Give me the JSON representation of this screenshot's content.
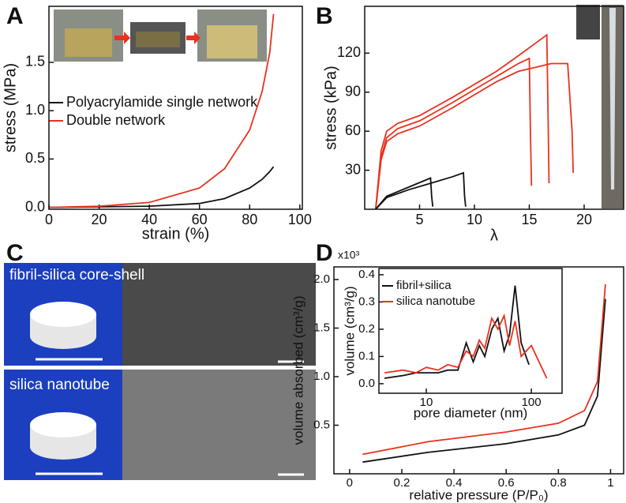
{
  "panel_labels": [
    "A",
    "B",
    "C",
    "D"
  ],
  "images": [
    {
      "label": "fibril-silica core-shell"
    },
    {
      "label": "silica nanotube"
    }
  ],
  "chart_data": [
    {
      "type": "line",
      "xlabel": "strain (%)",
      "ylabel": "stress (MPa)",
      "xlim": [
        0,
        101
      ],
      "ylim": [
        -0.02,
        2.08
      ],
      "xticks": [
        0,
        20,
        40,
        60,
        80,
        100
      ],
      "yticks": [
        {
          "value": 0,
          "label": "0.0"
        },
        0.5,
        {
          "value": 1,
          "label": "1.0"
        },
        1.5
      ],
      "series": [
        {
          "name": "Polyacrylamide single network",
          "color": "#111111",
          "x": [
            0,
            20,
            40,
            60,
            70,
            80,
            85,
            88,
            89.5
          ],
          "values": [
            0,
            0.005,
            0.012,
            0.04,
            0.09,
            0.2,
            0.29,
            0.37,
            0.42
          ]
        },
        {
          "name": "Double network",
          "color": "#e8321e",
          "x": [
            0,
            20,
            40,
            60,
            70,
            80,
            85,
            88,
            89.5
          ],
          "values": [
            0,
            0.012,
            0.05,
            0.2,
            0.4,
            0.8,
            1.2,
            1.6,
            2.0
          ]
        }
      ]
    },
    {
      "type": "line",
      "xlabel": "λ",
      "ylabel": "stress (kPa)",
      "xlim": [
        0,
        23.6
      ],
      "ylim": [
        0,
        156
      ],
      "xticks": [
        5,
        10,
        15,
        20
      ],
      "yticks": [
        30,
        60,
        90,
        120
      ],
      "series": [
        {
          "color": "#e8321e",
          "x": [
            1,
            1.5,
            2,
            3,
            5,
            8,
            10,
            12,
            14,
            16.6,
            16.7,
            16.8
          ],
          "values": [
            0,
            45,
            60,
            66,
            72,
            86,
            96,
            106,
            118,
            134,
            80,
            20
          ]
        },
        {
          "color": "#e8321e",
          "x": [
            1,
            1.5,
            2,
            3,
            5,
            8,
            10,
            12,
            14,
            15,
            15.1,
            15.2
          ],
          "values": [
            0,
            40,
            55,
            62,
            68,
            82,
            92,
            102,
            112,
            116,
            60,
            18
          ]
        },
        {
          "color": "#e8321e",
          "x": [
            1,
            1.5,
            2,
            3,
            5,
            8,
            10,
            12,
            14,
            17,
            18.5,
            18.9,
            19
          ],
          "values": [
            0,
            38,
            52,
            58,
            64,
            78,
            88,
            98,
            106,
            112,
            112,
            60,
            28
          ]
        },
        {
          "color": "#111111",
          "x": [
            1,
            2,
            4,
            6,
            6.1,
            6.2
          ],
          "values": [
            0,
            10,
            17,
            24,
            10,
            2
          ]
        },
        {
          "color": "#111111",
          "x": [
            1,
            2,
            4,
            6,
            8,
            9,
            9.1,
            9.2
          ],
          "values": [
            0,
            9,
            15,
            20,
            25,
            28,
            10,
            2
          ]
        }
      ]
    },
    {
      "type": "line",
      "xlabel": "relative pressure (P/P₀)",
      "ylabel": "volume absorbed (cm³/g)",
      "axis_multiplier": "x10³",
      "xlim": [
        -0.06,
        1.05
      ],
      "ylim": [
        0,
        2.13
      ],
      "xticks": [
        0,
        0.2,
        0.4,
        0.6,
        0.8,
        1
      ],
      "yticks": [
        0.5,
        {
          "value": 1,
          "label": "1.0"
        },
        1.5,
        {
          "value": 2,
          "label": "2.0"
        }
      ],
      "series": [
        {
          "name": "fibril+silica",
          "color": "#111111",
          "x": [
            0.05,
            0.3,
            0.6,
            0.8,
            0.9,
            0.95,
            0.98
          ],
          "values": [
            0.12,
            0.22,
            0.31,
            0.4,
            0.5,
            0.8,
            1.8
          ]
        },
        {
          "name": "silica nanotube",
          "color": "#e8321e",
          "x": [
            0.05,
            0.3,
            0.6,
            0.8,
            0.9,
            0.95,
            0.98
          ],
          "values": [
            0.2,
            0.33,
            0.43,
            0.52,
            0.65,
            0.95,
            1.95
          ]
        }
      ]
    },
    {
      "type": "line",
      "xlabel": "pore diameter (nm)",
      "ylabel": "volume (cm³/g)",
      "xscale": "log",
      "xlim": [
        3.54,
        196
      ],
      "ylim": [
        -0.035,
        0.423
      ],
      "xticks": [
        10,
        100
      ],
      "yticks": [
        {
          "value": 0,
          "label": "0.0"
        },
        0.1,
        0.2,
        0.3,
        0.4
      ],
      "series": [
        {
          "name": "fibril+silica",
          "color": "#111111",
          "x": [
            4,
            6,
            8,
            10,
            13,
            16,
            20,
            24,
            28,
            32,
            36,
            42,
            48,
            55,
            62,
            70,
            80,
            95
          ],
          "values": [
            0.02,
            0.03,
            0.04,
            0.04,
            0.04,
            0.05,
            0.05,
            0.15,
            0.08,
            0.14,
            0.1,
            0.2,
            0.24,
            0.12,
            0.18,
            0.36,
            0.15,
            0.07
          ]
        },
        {
          "name": "silica nanotube",
          "color": "#e8321e",
          "x": [
            4,
            6,
            8,
            10,
            13,
            16,
            20,
            24,
            28,
            32,
            36,
            42,
            48,
            55,
            62,
            70,
            80,
            100,
            140
          ],
          "values": [
            0.04,
            0.05,
            0.04,
            0.06,
            0.05,
            0.07,
            0.06,
            0.12,
            0.1,
            0.16,
            0.13,
            0.24,
            0.2,
            0.25,
            0.14,
            0.23,
            0.1,
            0.14,
            0.02
          ]
        }
      ]
    }
  ]
}
